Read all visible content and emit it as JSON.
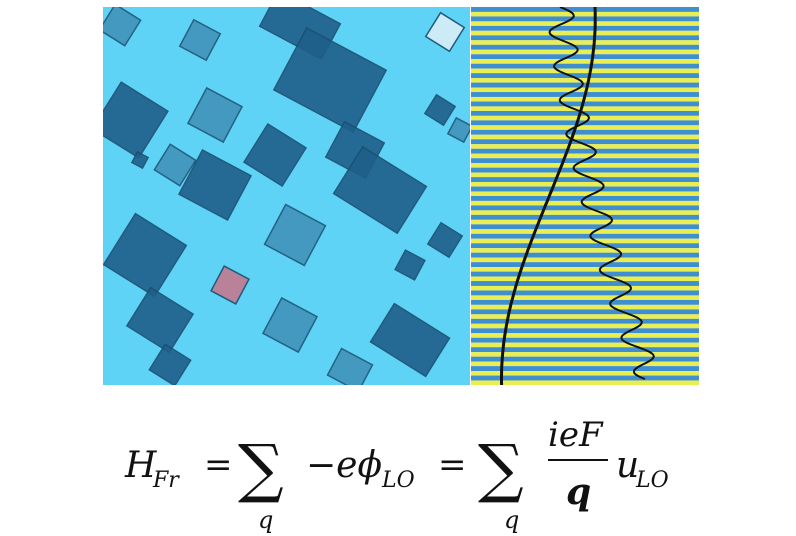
{
  "colors": {
    "micrograph_bg": "#5fd3f5",
    "flake_dark": "#1f5f8a",
    "flake_mid": "#3f8fb6",
    "stripe_yellow": "#e9ef52",
    "stripe_blue": "#3f8fd0",
    "curve": "#111111",
    "highlight": "#e0302a"
  },
  "equation": {
    "H": "H",
    "H_sub": "Fr",
    "eq1": "=",
    "sum1": "∑",
    "sum1_index": "q",
    "term1": "−eϕ",
    "term1_sub": "LO",
    "eq2": "=",
    "sum2": "∑",
    "sum2_index": "q",
    "numerator": "ieF",
    "denominator": "q",
    "u": "u",
    "u_sub": "LO"
  }
}
